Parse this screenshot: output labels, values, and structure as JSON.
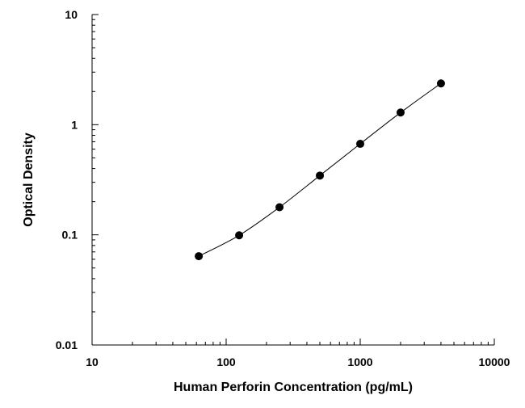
{
  "chart_data": {
    "type": "scatter",
    "title": "",
    "xlabel": "Human Perforin Concentration (pg/mL)",
    "ylabel": "Optical Density",
    "x_scale": "log",
    "y_scale": "log",
    "xlim": [
      10,
      10000
    ],
    "ylim": [
      0.01,
      10
    ],
    "x_ticks": [
      {
        "value": 10,
        "label": "10"
      },
      {
        "value": 100,
        "label": "100"
      },
      {
        "value": 1000,
        "label": "1000"
      },
      {
        "value": 10000,
        "label": "10000"
      }
    ],
    "y_ticks": [
      {
        "value": 0.01,
        "label": "0.01"
      },
      {
        "value": 0.1,
        "label": "0.1"
      },
      {
        "value": 1,
        "label": "1"
      },
      {
        "value": 10,
        "label": "10"
      }
    ],
    "grid": false,
    "legend": "none",
    "marker_color": "#000000",
    "line_color": "#000000",
    "fit_curve": true,
    "points": [
      {
        "x": 62.5,
        "y": 0.064
      },
      {
        "x": 125,
        "y": 0.099
      },
      {
        "x": 250,
        "y": 0.178
      },
      {
        "x": 500,
        "y": 0.345
      },
      {
        "x": 1000,
        "y": 0.67
      },
      {
        "x": 2000,
        "y": 1.29
      },
      {
        "x": 4000,
        "y": 2.37
      }
    ]
  }
}
